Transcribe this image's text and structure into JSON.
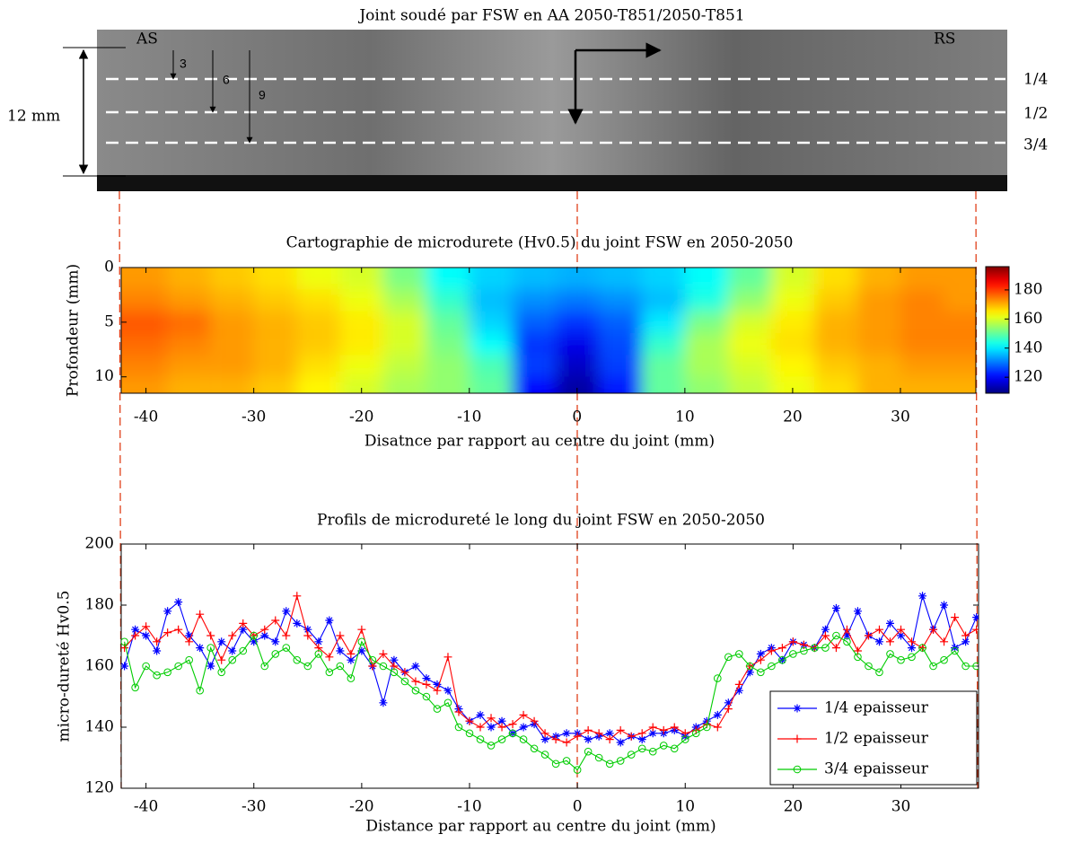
{
  "photo": {
    "title": "Joint soudé par FSW en AA 2050-T851/2050-T851",
    "side_labels": [
      "AS",
      "RS"
    ],
    "depth_arrows": [
      "3",
      "6",
      "9"
    ],
    "thickness": "12 mm",
    "levels": [
      "1/4",
      "1/2",
      "3/4"
    ]
  },
  "chart_data": [
    {
      "type": "heatmap",
      "title": "Cartographie de microdurete (Hv0.5) du joint FSW en 2050-2050",
      "x_label": "Disatnce par rapport au centre du joint (mm)",
      "y_label": "Profondeur (mm)",
      "colormap": "jet",
      "x": [
        -40,
        -36,
        -32,
        -28,
        -24,
        -20,
        -16,
        -12,
        -8,
        -4,
        0,
        4,
        8,
        12,
        16,
        20,
        24,
        28,
        32,
        36
      ],
      "y": [
        1,
        3,
        5,
        7,
        9,
        11
      ],
      "z": [
        [
          172,
          170,
          168,
          166,
          162,
          160,
          152,
          142,
          138,
          136,
          135,
          136,
          138,
          142,
          150,
          160,
          166,
          170,
          172,
          172
        ],
        [
          174,
          172,
          170,
          168,
          166,
          162,
          156,
          146,
          136,
          132,
          130,
          132,
          136,
          144,
          154,
          162,
          168,
          172,
          174,
          172
        ],
        [
          178,
          176,
          172,
          170,
          168,
          165,
          160,
          150,
          138,
          128,
          124,
          128,
          140,
          152,
          160,
          165,
          170,
          172,
          174,
          174
        ],
        [
          176,
          174,
          172,
          170,
          168,
          165,
          160,
          152,
          142,
          124,
          118,
          126,
          146,
          156,
          162,
          166,
          170,
          172,
          174,
          174
        ],
        [
          174,
          172,
          172,
          170,
          166,
          162,
          158,
          154,
          148,
          125,
          115,
          125,
          150,
          156,
          160,
          164,
          168,
          170,
          172,
          172
        ],
        [
          172,
          170,
          170,
          168,
          164,
          160,
          156,
          154,
          150,
          120,
          112,
          122,
          150,
          154,
          158,
          162,
          166,
          170,
          170,
          170
        ]
      ],
      "xlim": [
        -42.3,
        37
      ],
      "ylim": [
        0,
        11.5
      ],
      "y_inverted": true,
      "xticks": [
        -40,
        -30,
        -20,
        -10,
        0,
        10,
        20,
        30
      ],
      "yticks": [
        0,
        5,
        10
      ],
      "clim": [
        109,
        196
      ],
      "cticks": [
        120,
        140,
        160,
        180
      ]
    },
    {
      "type": "line",
      "title": "Profils de microdureté le long du joint FSW en 2050-2050",
      "x_label": "Distance par rapport au centre du joint (mm)",
      "y_label": "micro-dureté Hv0.5",
      "x": [
        -42,
        -41,
        -40,
        -39,
        -38,
        -37,
        -36,
        -35,
        -34,
        -33,
        -32,
        -31,
        -30,
        -29,
        -28,
        -27,
        -26,
        -25,
        -24,
        -23,
        -22,
        -21,
        -20,
        -19,
        -18,
        -17,
        -16,
        -15,
        -14,
        -13,
        -12,
        -11,
        -10,
        -9,
        -8,
        -7,
        -6,
        -5,
        -4,
        -3,
        -2,
        -1,
        0,
        1,
        2,
        3,
        4,
        5,
        6,
        7,
        8,
        9,
        10,
        11,
        12,
        13,
        14,
        15,
        16,
        17,
        18,
        19,
        20,
        21,
        22,
        23,
        24,
        25,
        26,
        27,
        28,
        29,
        30,
        31,
        32,
        33,
        34,
        35,
        36,
        37
      ],
      "series": [
        {
          "name": "1/4 epaisseur",
          "color": "#0000ff",
          "marker": "*",
          "values": [
            160,
            172,
            170,
            165,
            178,
            181,
            170,
            166,
            160,
            168,
            165,
            172,
            168,
            170,
            168,
            178,
            174,
            172,
            168,
            175,
            165,
            162,
            165,
            160,
            148,
            162,
            158,
            160,
            156,
            154,
            152,
            146,
            142,
            144,
            140,
            142,
            138,
            140,
            141,
            136,
            137,
            138,
            138,
            136,
            137,
            138,
            135,
            137,
            136,
            138,
            138,
            139,
            137,
            140,
            142,
            144,
            148,
            152,
            158,
            164,
            166,
            162,
            168,
            167,
            166,
            172,
            179,
            170,
            178,
            170,
            168,
            174,
            170,
            166,
            183,
            172,
            180,
            166,
            168,
            176
          ]
        },
        {
          "name": "1/2 epaisseur",
          "color": "#ff0000",
          "marker": "+",
          "values": [
            166,
            170,
            173,
            168,
            171,
            172,
            168,
            177,
            170,
            162,
            170,
            174,
            170,
            172,
            175,
            170,
            183,
            170,
            166,
            163,
            170,
            164,
            172,
            160,
            164,
            160,
            158,
            155,
            154,
            152,
            163,
            145,
            142,
            140,
            143,
            140,
            141,
            144,
            142,
            138,
            136,
            135,
            137,
            139,
            138,
            136,
            139,
            137,
            138,
            140,
            139,
            140,
            138,
            139,
            141,
            140,
            146,
            154,
            160,
            162,
            165,
            166,
            168,
            167,
            166,
            170,
            166,
            172,
            165,
            170,
            172,
            168,
            172,
            168,
            166,
            172,
            168,
            176,
            170,
            172
          ]
        },
        {
          "name": "3/4 epaisseur",
          "color": "#00cc00",
          "marker": "o",
          "values": [
            168,
            153,
            160,
            157,
            158,
            160,
            162,
            152,
            166,
            158,
            162,
            165,
            170,
            160,
            164,
            166,
            162,
            160,
            164,
            158,
            160,
            156,
            168,
            162,
            160,
            158,
            155,
            152,
            150,
            146,
            148,
            140,
            138,
            136,
            134,
            136,
            138,
            136,
            133,
            131,
            128,
            129,
            126,
            132,
            130,
            128,
            129,
            131,
            133,
            132,
            134,
            133,
            136,
            138,
            140,
            156,
            163,
            164,
            160,
            158,
            160,
            162,
            164,
            165,
            166,
            166,
            170,
            168,
            163,
            160,
            158,
            164,
            162,
            163,
            166,
            160,
            162,
            165,
            160,
            160
          ]
        }
      ],
      "xlim": [
        -42.3,
        37.2
      ],
      "ylim": [
        120,
        200
      ],
      "xticks": [
        -40,
        -30,
        -20,
        -10,
        0,
        10,
        20,
        30
      ],
      "yticks": [
        120,
        140,
        160,
        180,
        200
      ],
      "legend": "lower right"
    }
  ]
}
